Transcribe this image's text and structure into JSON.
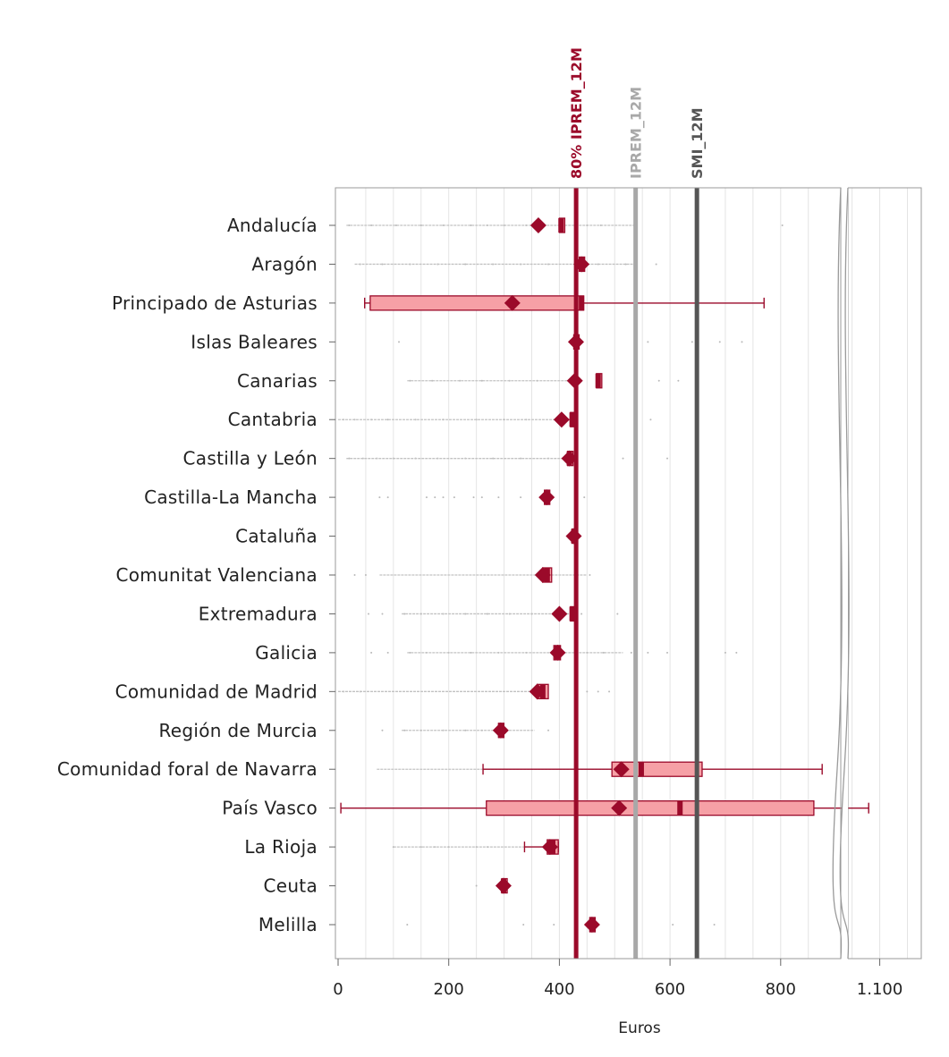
{
  "chart_data": {
    "type": "boxplot",
    "orientation": "horizontal",
    "xlabel": "Euros",
    "x_ticks": [
      "0",
      "200",
      "400",
      "600",
      "800",
      "1.100"
    ],
    "x_axis_break": {
      "from": 900,
      "to": 1050
    },
    "xlim": [
      0,
      1200
    ],
    "grid": true,
    "colors": {
      "box_fill": "#f6a0a6",
      "accent": "#9b0a2a",
      "whisker_grey": "#c2c2c2",
      "outlier_grey": "#b9b9b9",
      "ref_iprem": "#a8a8a8",
      "ref_smi": "#555555",
      "frame": "#9a9a9a"
    },
    "reference_lines": [
      {
        "label": "80% IPREM_12M",
        "value": 430.27,
        "color": "#9b0a2a"
      },
      {
        "label": "IPREM_12M",
        "value": 537.84,
        "color": "#a8a8a8"
      },
      {
        "label": "SMI_12M",
        "value": 648.6,
        "color": "#555555"
      }
    ],
    "categories": [
      "Andalucía",
      "Aragón",
      "Principado de Asturias",
      "Islas Baleares",
      "Canarias",
      "Cantabria",
      "Castilla y León",
      "Castilla-La Mancha",
      "Cataluña",
      "Comunitat Valenciana",
      "Extremadura",
      "Galicia",
      "Comunidad de Madrid",
      "Región de Murcia",
      "Comunidad foral de Navarra",
      "País Vasco",
      "La Rioja",
      "Ceuta",
      "Melilla"
    ],
    "series": [
      {
        "q1": 400,
        "median": 403,
        "q3": 406,
        "mean": 362,
        "wlo": 400,
        "whi": 406,
        "wcolor": "grey",
        "wgrey": [
          15,
          535
        ],
        "out": [
          20,
          60,
          105,
          150,
          190,
          240,
          270,
          300,
          340,
          450,
          475,
          803
        ]
      },
      {
        "q1": 436,
        "median": 440,
        "q3": 444,
        "mean": 440,
        "wlo": 436,
        "whi": 444,
        "wcolor": "grey",
        "wgrey": [
          30,
          535
        ],
        "out": [
          40,
          80,
          130,
          180,
          230,
          280,
          330,
          380,
          470,
          520,
          575
        ]
      },
      {
        "q1": 58,
        "median": 440,
        "q3": 444,
        "mean": 315,
        "wlo": 48,
        "whi": 770,
        "wcolor": "accent",
        "out": []
      },
      {
        "q1": 426,
        "median": 430,
        "q3": 434,
        "mean": 430,
        "wlo": 426,
        "whi": 434,
        "wcolor": "grey",
        "out": [
          110,
          560,
          640,
          690,
          730
        ]
      },
      {
        "q1": 467,
        "median": 470,
        "q3": 474,
        "mean": 428,
        "wlo": 467,
        "whi": 474,
        "wcolor": "grey",
        "wgrey": [
          125,
          435
        ],
        "out": [
          130,
          170,
          220,
          260,
          310,
          360,
          580,
          615
        ]
      },
      {
        "q1": 420,
        "median": 423,
        "q3": 426,
        "mean": 404,
        "wlo": 420,
        "whi": 426,
        "wcolor": "grey",
        "wgrey": [
          0,
          420
        ],
        "out": [
          10,
          30,
          60,
          90,
          140,
          190,
          250,
          300,
          340,
          565
        ]
      },
      {
        "q1": 415,
        "median": 418,
        "q3": 421,
        "mean": 418,
        "wlo": 415,
        "whi": 421,
        "wcolor": "grey",
        "wgrey": [
          15,
          430
        ],
        "out": [
          20,
          45,
          70,
          100,
          140,
          180,
          230,
          280,
          330,
          380,
          515,
          595
        ]
      },
      {
        "q1": 373,
        "median": 377,
        "q3": 381,
        "mean": 377,
        "wlo": 373,
        "whi": 381,
        "wcolor": "grey",
        "out": [
          75,
          90,
          160,
          175,
          190,
          210,
          245,
          260,
          290,
          330,
          445
        ]
      },
      {
        "q1": 423,
        "median": 426,
        "q3": 429,
        "mean": 426,
        "wlo": 423,
        "whi": 429,
        "wcolor": "grey",
        "out": []
      },
      {
        "q1": 370,
        "median": 378,
        "q3": 386,
        "mean": 370,
        "wlo": 370,
        "whi": 386,
        "wcolor": "grey",
        "wgrey": [
          75,
          450
        ],
        "out": [
          30,
          50,
          430,
          455
        ]
      },
      {
        "q1": 420,
        "median": 423,
        "q3": 426,
        "mean": 400,
        "wlo": 420,
        "whi": 426,
        "wcolor": "grey",
        "wgrey": [
          115,
          420
        ],
        "out": [
          55,
          80,
          120,
          150,
          190,
          230,
          270,
          310,
          350,
          390,
          440,
          505
        ]
      },
      {
        "q1": 390,
        "median": 396,
        "q3": 402,
        "mean": 397,
        "wlo": 390,
        "whi": 402,
        "wcolor": "grey",
        "wgrey": [
          125,
          515
        ],
        "out": [
          60,
          90,
          130,
          160,
          200,
          240,
          290,
          340,
          450,
          480,
          530,
          560,
          595,
          700,
          720
        ]
      },
      {
        "q1": 360,
        "median": 370,
        "q3": 380,
        "mean": 360,
        "wlo": 360,
        "whi": 380,
        "wcolor": "grey",
        "wgrey": [
          0,
          380
        ],
        "out": [
          10,
          40,
          450,
          470,
          490
        ]
      },
      {
        "q1": 290,
        "median": 294,
        "q3": 298,
        "mean": 294,
        "wlo": 290,
        "whi": 298,
        "wcolor": "grey",
        "wgrey": [
          115,
          355
        ],
        "out": [
          80,
          120,
          150,
          190,
          230,
          260,
          380
        ]
      },
      {
        "q1": 495,
        "median": 548,
        "q3": 658,
        "mean": 512,
        "wlo": 262,
        "whi": 875,
        "wcolor": "accent",
        "wgrey": [
          70,
          495
        ],
        "out": []
      },
      {
        "q1": 268,
        "median": 618,
        "q3": 860,
        "mean": 508,
        "wlo": 5,
        "whi": 1080,
        "wcolor": "accent",
        "out": []
      },
      {
        "q1": 378,
        "median": 388,
        "q3": 398,
        "mean": 383,
        "wlo": 337,
        "whi": 398,
        "wcolor": "accent",
        "wgrey": [
          100,
          337
        ],
        "out": [
          100,
          150,
          175,
          200,
          250,
          270
        ]
      },
      {
        "q1": 296,
        "median": 299,
        "q3": 302,
        "mean": 299,
        "wlo": 296,
        "whi": 302,
        "wcolor": "grey",
        "out": [
          250
        ]
      },
      {
        "q1": 455,
        "median": 459,
        "q3": 463,
        "mean": 459,
        "wlo": 455,
        "whi": 463,
        "wcolor": "grey",
        "out": [
          125,
          335,
          390,
          605,
          680
        ]
      }
    ]
  }
}
